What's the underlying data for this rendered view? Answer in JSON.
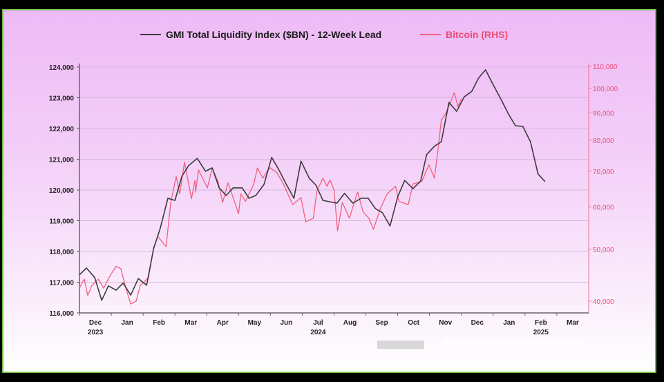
{
  "chart_data": {
    "type": "line",
    "title": "",
    "x_unit": "months since Dec 1 2023",
    "x_ticks": [
      "Dec",
      "Jan",
      "Feb",
      "Mar",
      "Apr",
      "May",
      "Jun",
      "Jul",
      "Aug",
      "Sep",
      "Oct",
      "Nov",
      "Dec",
      "Jan",
      "Feb",
      "Mar"
    ],
    "x_years": [
      {
        "label": "2023",
        "month_index": 0
      },
      {
        "label": "2024",
        "month_index": 7
      },
      {
        "label": "2025",
        "month_index": 14
      }
    ],
    "xlim": [
      0,
      16
    ],
    "left_axis": {
      "ylim": [
        116000,
        124000
      ],
      "ticks": [
        "116,000",
        "117,000",
        "118,000",
        "119,000",
        "120,000",
        "121,000",
        "122,000",
        "123,000",
        "124,000"
      ],
      "tick_values": [
        116000,
        117000,
        118000,
        119000,
        120000,
        121000,
        122000,
        123000,
        124000
      ]
    },
    "right_axis": {
      "scale": "log",
      "ylim": [
        40000,
        110000
      ],
      "ticks": [
        "40,000",
        "50,000",
        "60,000",
        "70,000",
        "80,000",
        "90,000",
        "100,000",
        "110,000"
      ],
      "tick_values": [
        40000,
        50000,
        60000,
        70000,
        80000,
        90000,
        100000,
        110000
      ]
    },
    "grid": true,
    "legend_position": "top-center",
    "series": [
      {
        "name": "GMI Total Liquidity Index ($BN) - 12-Week Lead",
        "axis": "left",
        "color": "#3a3a3a",
        "points": [
          [
            0,
            117240
          ],
          [
            0.22,
            117460
          ],
          [
            0.48,
            117150
          ],
          [
            0.7,
            116410
          ],
          [
            0.91,
            116880
          ],
          [
            1.15,
            116740
          ],
          [
            1.37,
            116970
          ],
          [
            1.61,
            116580
          ],
          [
            1.85,
            117120
          ],
          [
            2.11,
            116900
          ],
          [
            2.33,
            118090
          ],
          [
            2.54,
            118760
          ],
          [
            2.78,
            119730
          ],
          [
            3.0,
            119660
          ],
          [
            3.22,
            120450
          ],
          [
            3.43,
            120790
          ],
          [
            3.7,
            121030
          ],
          [
            3.96,
            120610
          ],
          [
            4.17,
            120720
          ],
          [
            4.39,
            120070
          ],
          [
            4.61,
            119820
          ],
          [
            4.83,
            120070
          ],
          [
            5.11,
            120070
          ],
          [
            5.33,
            119730
          ],
          [
            5.54,
            119820
          ],
          [
            5.8,
            120180
          ],
          [
            6.04,
            121060
          ],
          [
            6.26,
            120670
          ],
          [
            6.48,
            120220
          ],
          [
            6.74,
            119730
          ],
          [
            6.96,
            120940
          ],
          [
            7.22,
            120380
          ],
          [
            7.43,
            120160
          ],
          [
            7.65,
            119660
          ],
          [
            8.09,
            119570
          ],
          [
            8.33,
            119890
          ],
          [
            8.59,
            119570
          ],
          [
            8.85,
            119730
          ],
          [
            9.07,
            119730
          ],
          [
            9.3,
            119390
          ],
          [
            9.52,
            119260
          ],
          [
            9.76,
            118830
          ],
          [
            10.0,
            119780
          ],
          [
            10.22,
            120310
          ],
          [
            10.48,
            120040
          ],
          [
            10.72,
            120290
          ],
          [
            10.91,
            121150
          ],
          [
            11.15,
            121420
          ],
          [
            11.37,
            121570
          ],
          [
            11.61,
            122850
          ],
          [
            11.85,
            122560
          ],
          [
            12.09,
            123030
          ],
          [
            12.33,
            123210
          ],
          [
            12.54,
            123640
          ],
          [
            12.76,
            123910
          ],
          [
            13.0,
            123420
          ],
          [
            13.26,
            122920
          ],
          [
            13.48,
            122470
          ],
          [
            13.7,
            122090
          ],
          [
            13.93,
            122070
          ],
          [
            14.17,
            121570
          ],
          [
            14.41,
            120520
          ],
          [
            14.63,
            120270
          ]
        ]
      },
      {
        "name": "Bitcoin (RHS)",
        "axis": "right",
        "color": "#f0607e",
        "points": [
          [
            0,
            42300
          ],
          [
            0.15,
            44000
          ],
          [
            0.26,
            41000
          ],
          [
            0.39,
            42800
          ],
          [
            0.59,
            44000
          ],
          [
            0.76,
            42300
          ],
          [
            0.93,
            44300
          ],
          [
            1.15,
            46500
          ],
          [
            1.3,
            46000
          ],
          [
            1.46,
            42300
          ],
          [
            1.61,
            39500
          ],
          [
            1.78,
            40000
          ],
          [
            1.91,
            42800
          ],
          [
            2.17,
            44300
          ],
          [
            2.33,
            50400
          ],
          [
            2.46,
            52900
          ],
          [
            2.72,
            50600
          ],
          [
            2.87,
            61200
          ],
          [
            3.04,
            68500
          ],
          [
            3.15,
            63500
          ],
          [
            3.3,
            72800
          ],
          [
            3.52,
            62200
          ],
          [
            3.63,
            67400
          ],
          [
            3.65,
            64000
          ],
          [
            3.74,
            70400
          ],
          [
            4.02,
            65200
          ],
          [
            4.17,
            71000
          ],
          [
            4.35,
            67000
          ],
          [
            4.5,
            61200
          ],
          [
            4.67,
            66600
          ],
          [
            5.0,
            58300
          ],
          [
            5.07,
            63500
          ],
          [
            5.22,
            61500
          ],
          [
            5.48,
            66300
          ],
          [
            5.59,
            71000
          ],
          [
            5.76,
            68000
          ],
          [
            5.98,
            71100
          ],
          [
            6.2,
            69600
          ],
          [
            6.41,
            66300
          ],
          [
            6.7,
            60600
          ],
          [
            6.96,
            62500
          ],
          [
            7.11,
            56300
          ],
          [
            7.35,
            57200
          ],
          [
            7.46,
            64300
          ],
          [
            7.65,
            67900
          ],
          [
            7.78,
            65600
          ],
          [
            7.87,
            67400
          ],
          [
            8.0,
            64600
          ],
          [
            8.11,
            54100
          ],
          [
            8.26,
            61200
          ],
          [
            8.48,
            57200
          ],
          [
            8.74,
            64000
          ],
          [
            8.91,
            58800
          ],
          [
            9.09,
            57200
          ],
          [
            9.24,
            54500
          ],
          [
            9.35,
            57100
          ],
          [
            9.46,
            59700
          ],
          [
            9.67,
            63500
          ],
          [
            9.93,
            65600
          ],
          [
            10.04,
            61500
          ],
          [
            10.33,
            60600
          ],
          [
            10.48,
            66300
          ],
          [
            10.76,
            67000
          ],
          [
            10.98,
            72000
          ],
          [
            11.15,
            68000
          ],
          [
            11.26,
            76100
          ],
          [
            11.37,
            87200
          ],
          [
            11.52,
            90000
          ],
          [
            11.78,
            98200
          ],
          [
            11.89,
            92500
          ],
          [
            12.0,
            95700
          ]
        ]
      }
    ]
  }
}
